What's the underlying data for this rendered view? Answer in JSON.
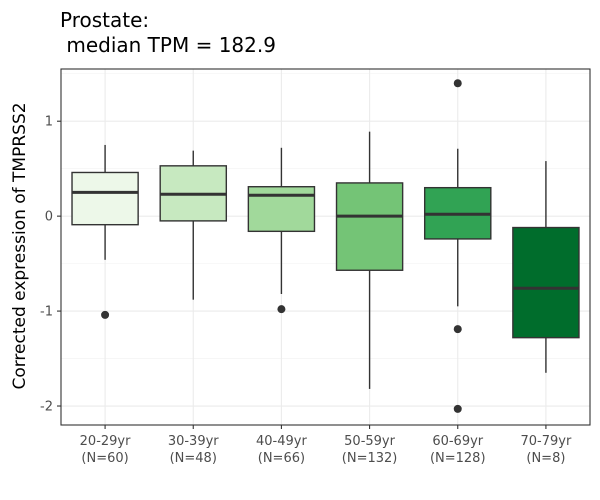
{
  "chart_data": {
    "type": "box",
    "title_line1": "Prostate:",
    "title_line2": " median TPM = 182.9",
    "xlabel": "",
    "ylabel": "Corrected expression of TMPRSS2",
    "ylim": [
      -2.2,
      1.55
    ],
    "yticks": [
      1,
      0,
      -1,
      -2
    ],
    "ytick_labels": [
      "1",
      "0",
      "-1",
      "-2"
    ],
    "grid": true,
    "categories": [
      {
        "label": "20-29yr",
        "n_label": "(N=60)",
        "color": "#edf8e9",
        "whisker_low": -0.46,
        "q1": -0.09,
        "median": 0.25,
        "q3": 0.46,
        "whisker_high": 0.75,
        "outliers": [
          -1.04
        ]
      },
      {
        "label": "30-39yr",
        "n_label": "(N=48)",
        "color": "#c7e9c0",
        "whisker_low": -0.88,
        "q1": -0.05,
        "median": 0.23,
        "q3": 0.53,
        "whisker_high": 0.69,
        "outliers": []
      },
      {
        "label": "40-49yr",
        "n_label": "(N=66)",
        "color": "#a1d99b",
        "whisker_low": -0.82,
        "q1": -0.16,
        "median": 0.22,
        "q3": 0.31,
        "whisker_high": 0.72,
        "outliers": [
          -0.98
        ]
      },
      {
        "label": "50-59yr",
        "n_label": "(N=132)",
        "color": "#74c476",
        "whisker_low": -1.82,
        "q1": -0.57,
        "median": 0.0,
        "q3": 0.35,
        "whisker_high": 0.89,
        "outliers": []
      },
      {
        "label": "60-69yr",
        "n_label": "(N=128)",
        "color": "#31a354",
        "whisker_low": -0.95,
        "q1": -0.24,
        "median": 0.02,
        "q3": 0.3,
        "whisker_high": 0.71,
        "outliers": [
          1.4,
          -1.19,
          -2.03
        ]
      },
      {
        "label": "70-79yr",
        "n_label": "(N=8)",
        "color": "#006d2c",
        "whisker_low": -1.65,
        "q1": -1.28,
        "median": -0.76,
        "q3": -0.12,
        "whisker_high": 0.58,
        "outliers": []
      }
    ]
  }
}
